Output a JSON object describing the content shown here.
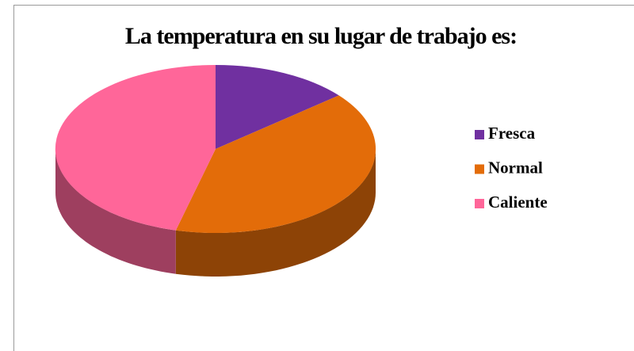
{
  "chart_data": {
    "type": "pie",
    "title": "La temperatura en su lugar de trabajo es:",
    "categories": [
      "Fresca",
      "Normal",
      "Caliente"
    ],
    "values": [
      14,
      40,
      46
    ],
    "colors": [
      "#7030a0",
      "#e36c09",
      "#ff6699"
    ],
    "legend": "right"
  }
}
